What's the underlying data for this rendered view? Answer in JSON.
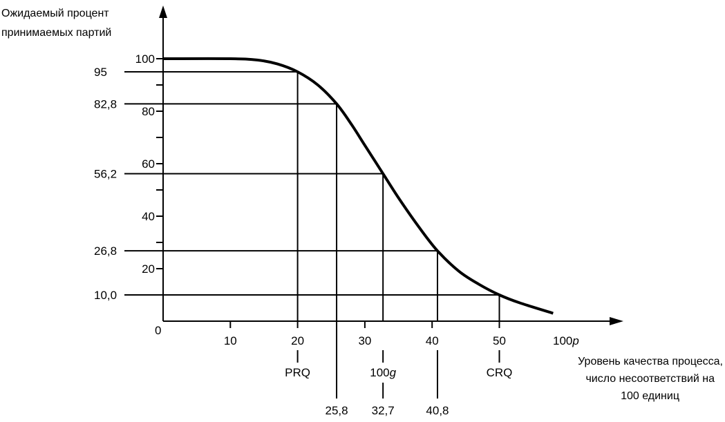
{
  "chart_data": {
    "type": "line",
    "ylabel_lines": [
      "Ожидаемый процент",
      "принимаемых партий"
    ],
    "xlabel_lines": [
      "Уровень качества процесса,",
      "число несоответствий на",
      "100 единиц"
    ],
    "x_axis_symbol_prefix": "100",
    "x_axis_symbol_italic": "p",
    "origin_label": "0",
    "xlim": [
      0,
      50
    ],
    "ylim": [
      0,
      100
    ],
    "grid": false,
    "x_ticks": [
      {
        "value": 10,
        "label": "10"
      },
      {
        "value": 20,
        "label": "20"
      },
      {
        "value": 30,
        "label": "30"
      },
      {
        "value": 40,
        "label": "40"
      },
      {
        "value": 50,
        "label": "50"
      }
    ],
    "y_ticks_right": [
      {
        "value": 100,
        "label": "100"
      },
      {
        "value": 80,
        "label": "80"
      },
      {
        "value": 60,
        "label": "60"
      },
      {
        "value": 40,
        "label": "40"
      },
      {
        "value": 20,
        "label": "20"
      }
    ],
    "y_ticks_minor": [
      90,
      70,
      50,
      30
    ],
    "y_marks_left": [
      {
        "value": 95,
        "label": "95"
      },
      {
        "value": 82.8,
        "label": "82,8"
      },
      {
        "value": 56.2,
        "label": "56,2"
      },
      {
        "value": 26.8,
        "label": "26,8"
      },
      {
        "value": 10.0,
        "label": "10,0"
      }
    ],
    "reference_points": [
      {
        "x": 20,
        "y": 95,
        "label": "PRQ",
        "label_prefix": "",
        "label_italic": "",
        "value_label": ""
      },
      {
        "x": 25.8,
        "y": 82.8,
        "label": "",
        "label_prefix": "",
        "label_italic": "",
        "value_label": "25,8"
      },
      {
        "x": 32.7,
        "y": 56.2,
        "label": "",
        "label_prefix": "100",
        "label_italic": "g",
        "value_label": "32,7"
      },
      {
        "x": 40.8,
        "y": 26.8,
        "label": "",
        "label_prefix": "",
        "label_italic": "",
        "value_label": "40,8"
      },
      {
        "x": 50,
        "y": 10.0,
        "label": "CRQ",
        "label_prefix": "",
        "label_italic": "",
        "value_label": ""
      }
    ],
    "series": [
      {
        "x": [
          0,
          10,
          14,
          17,
          20,
          23,
          25.8,
          28,
          30,
          32.7,
          35,
          38,
          40.8,
          44,
          47,
          50,
          53,
          58
        ],
        "y": [
          100,
          100,
          99.5,
          98,
          95,
          90,
          82.8,
          75,
          67,
          56.2,
          47,
          36,
          26.8,
          19,
          14,
          10,
          7,
          3
        ]
      }
    ]
  }
}
